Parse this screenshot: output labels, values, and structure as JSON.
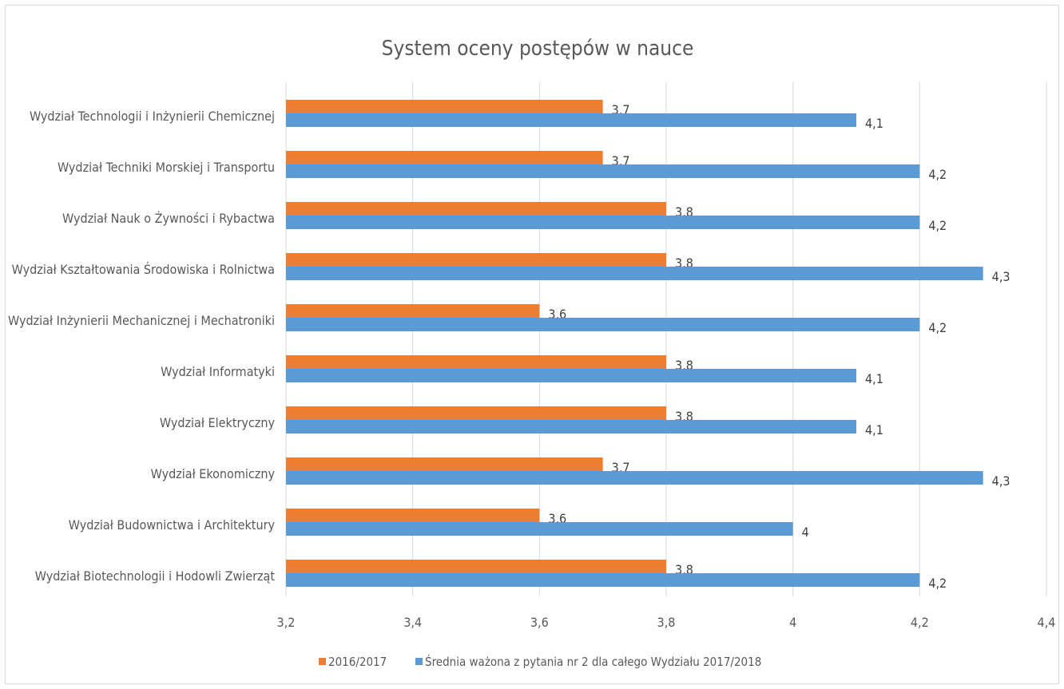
{
  "chart_data": {
    "type": "bar",
    "orientation": "horizontal",
    "title": "System oceny postępów w nauce",
    "categories": [
      "Wydział Technologii i Inżynierii Chemicznej",
      "Wydział Techniki Morskiej i Transportu",
      "Wydział Nauk o Żywności i Rybactwa",
      "Wydział Kształtowania Środowiska i Rolnictwa",
      "Wydział Inżynierii Mechanicznej i Mechatroniki",
      "Wydział Informatyki",
      "Wydział Elektryczny",
      "Wydział Ekonomiczny",
      "Wydział Budownictwa i Architektury",
      "Wydział Biotechnologii i Hodowli Zwierząt"
    ],
    "series": [
      {
        "name": "2016/2017",
        "color": "#ed7d31",
        "values": [
          3.7,
          3.7,
          3.8,
          3.8,
          3.6,
          3.8,
          3.8,
          3.7,
          3.6,
          3.8
        ],
        "labels": [
          "3,7",
          "3,7",
          "3,8",
          "3,8",
          "3,6",
          "3,8",
          "3,8",
          "3,7",
          "3,6",
          "3,8"
        ]
      },
      {
        "name": "Średnia ważona z pytania nr 2 dla całego Wydziału 2017/2018",
        "color": "#5b9bd5",
        "values": [
          4.1,
          4.2,
          4.2,
          4.3,
          4.2,
          4.1,
          4.1,
          4.3,
          4.0,
          4.2
        ],
        "labels": [
          "4,1",
          "4,2",
          "4,2",
          "4,3",
          "4,2",
          "4,1",
          "4,1",
          "4,3",
          "4",
          "4,2"
        ]
      }
    ],
    "xlim": [
      3.2,
      4.4
    ],
    "xticks": [
      3.2,
      3.4,
      3.6,
      3.8,
      4.0,
      4.2,
      4.4
    ],
    "xtick_labels": [
      "3,2",
      "3,4",
      "3,6",
      "3,8",
      "4",
      "4,2",
      "4,4"
    ],
    "grid": "vertical",
    "legend_position": "bottom"
  }
}
